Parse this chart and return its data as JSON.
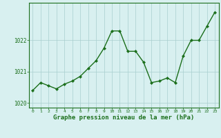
{
  "x": [
    0,
    1,
    2,
    3,
    4,
    5,
    6,
    7,
    8,
    9,
    10,
    11,
    12,
    13,
    14,
    15,
    16,
    17,
    18,
    19,
    20,
    21,
    22,
    23
  ],
  "y": [
    1020.4,
    1020.65,
    1020.55,
    1020.45,
    1020.6,
    1020.7,
    1020.85,
    1021.1,
    1021.35,
    1021.75,
    1022.3,
    1022.3,
    1021.65,
    1021.65,
    1021.3,
    1020.65,
    1020.7,
    1020.8,
    1020.65,
    1021.5,
    1022.0,
    1022.0,
    1022.45,
    1022.9
  ],
  "line_color": "#1a6e1a",
  "marker": "D",
  "marker_size": 2.2,
  "linewidth": 1.0,
  "bg_color": "#d8f0f0",
  "grid_color": "#a8cece",
  "xlabel": "Graphe pression niveau de la mer (hPa)",
  "xlabel_color": "#1a6e1a",
  "tick_color": "#1a6e1a",
  "ylim": [
    1019.85,
    1023.2
  ],
  "yticks": [
    1020,
    1021,
    1022
  ],
  "xticks": [
    0,
    1,
    2,
    3,
    4,
    5,
    6,
    7,
    8,
    9,
    10,
    11,
    12,
    13,
    14,
    15,
    16,
    17,
    18,
    19,
    20,
    21,
    22,
    23
  ],
  "xlim": [
    -0.5,
    23.5
  ]
}
